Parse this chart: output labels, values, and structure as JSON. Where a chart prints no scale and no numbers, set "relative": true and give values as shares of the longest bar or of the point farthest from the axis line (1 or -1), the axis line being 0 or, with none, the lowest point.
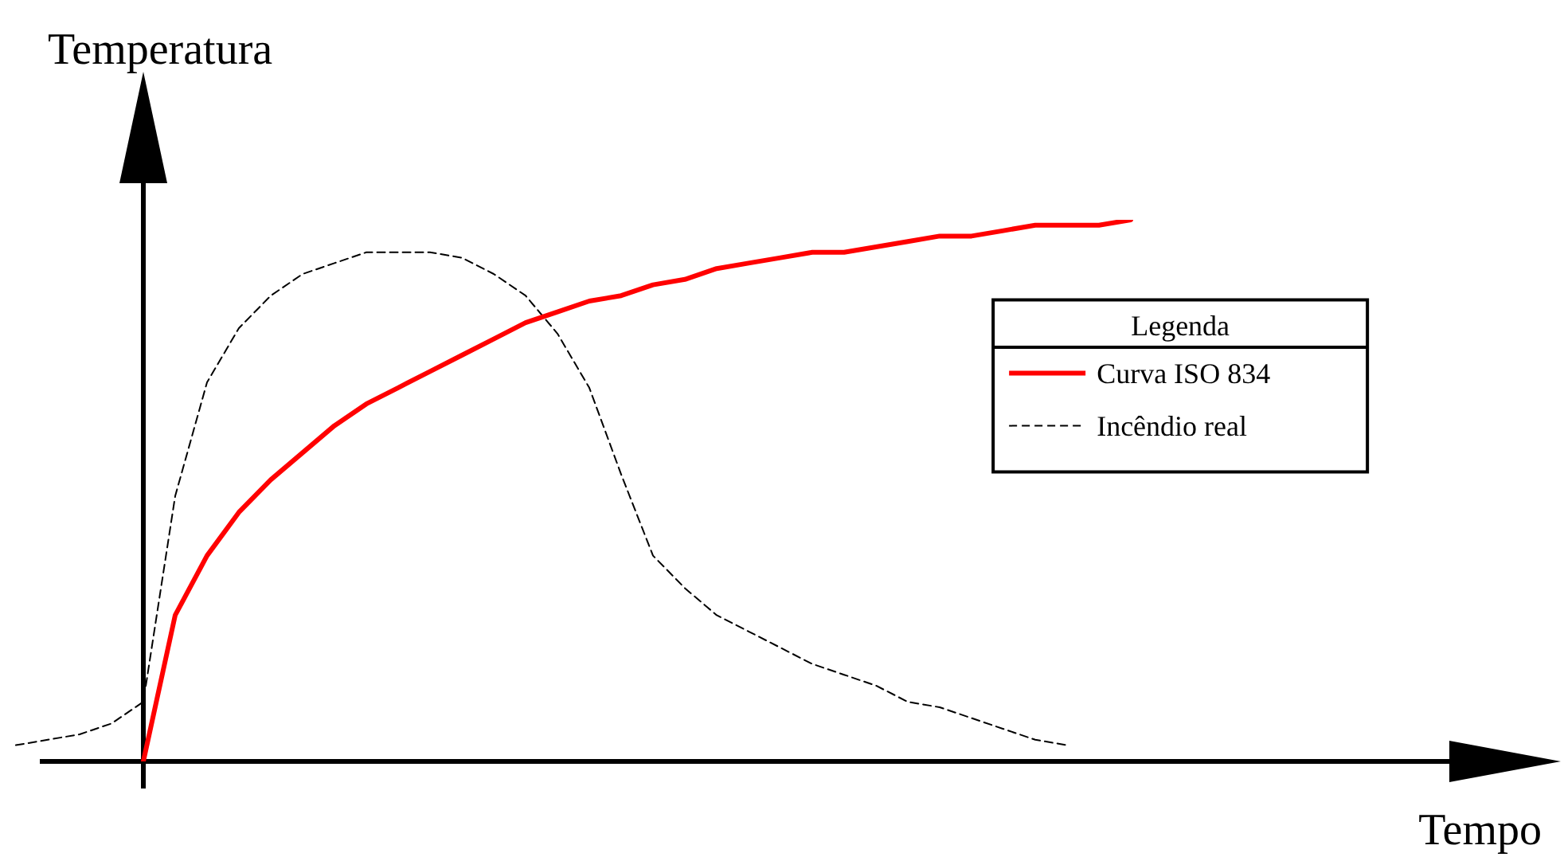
{
  "chart_data": {
    "type": "line",
    "relative": true,
    "xlabel": "Tempo",
    "ylabel": "Temperatura",
    "legend": "right",
    "legend_title": "Legenda",
    "marker": "none",
    "categories": [
      null,
      null,
      null,
      null,
      null,
      null,
      null,
      null,
      null,
      null,
      null,
      null,
      null,
      null,
      null,
      null,
      null,
      null,
      null,
      null,
      null,
      null,
      null,
      null,
      null,
      null,
      null,
      null,
      null,
      null,
      null,
      null,
      null,
      null,
      null,
      null,
      null,
      null,
      null,
      null,
      null,
      null,
      null,
      null,
      null,
      null,
      null,
      null,
      null
    ],
    "series": [
      {
        "name": "Curva ISO 834",
        "color": "#ff0000",
        "line_style": "solid",
        "values": [
          null,
          null,
          null,
          null,
          0,
          0.27,
          0.38,
          0.46,
          0.52,
          0.57,
          0.62,
          0.66,
          0.69,
          0.72,
          0.75,
          0.78,
          0.81,
          0.83,
          0.85,
          0.86,
          0.88,
          0.89,
          0.91,
          0.92,
          0.93,
          0.94,
          0.94,
          0.95,
          0.96,
          0.97,
          0.97,
          0.98,
          0.99,
          0.99,
          0.99,
          1,
          null,
          null,
          null,
          null,
          null,
          null,
          null,
          null,
          null,
          null,
          null,
          null,
          null
        ]
      },
      {
        "name": "Incêndio real",
        "color": "#000000",
        "line_style": "dashed",
        "values": [
          0.03,
          0.04,
          0.05,
          0.07,
          0.11,
          0.49,
          0.7,
          0.8,
          0.86,
          0.9,
          0.92,
          0.94,
          0.94,
          0.94,
          0.93,
          0.9,
          0.86,
          0.79,
          0.69,
          0.53,
          0.38,
          0.32,
          0.27,
          0.24,
          0.21,
          0.18,
          0.16,
          0.14,
          0.11,
          0.1,
          0.08,
          0.06,
          0.04,
          0.03,
          null,
          null,
          null,
          null,
          null,
          null,
          null,
          null,
          null,
          null,
          null,
          null,
          null,
          null,
          null
        ]
      }
    ]
  }
}
